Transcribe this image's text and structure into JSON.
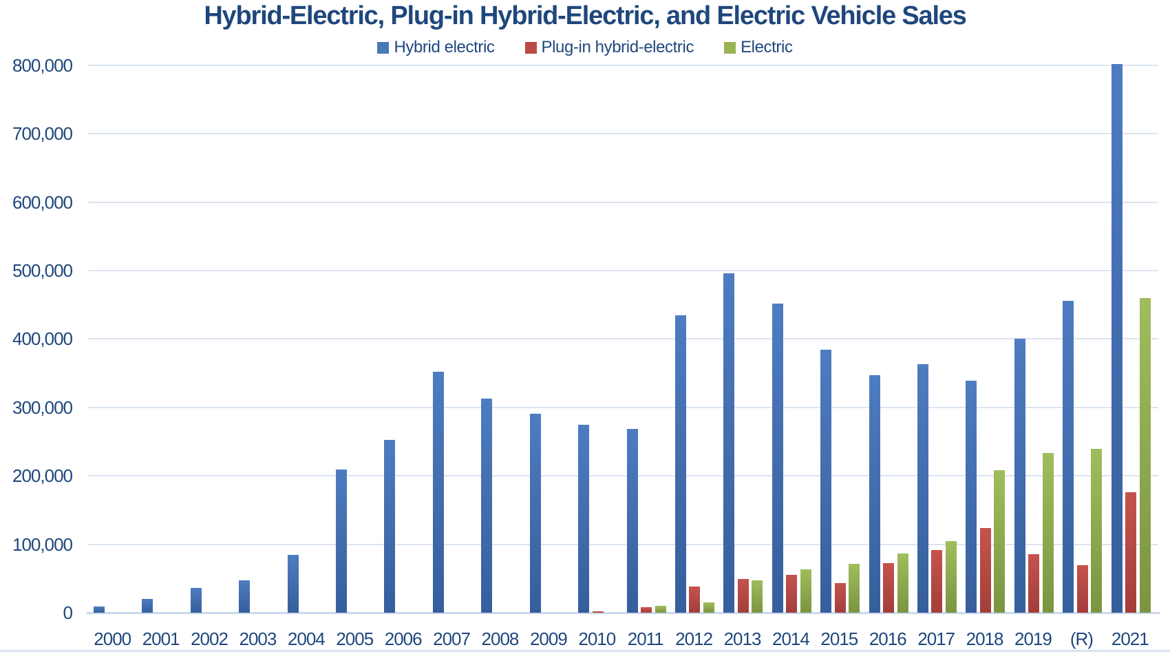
{
  "chart": {
    "title": "Hybrid-Electric, Plug-in Hybrid-Electric, and Electric Vehicle Sales",
    "text_color": "#1F477D",
    "gridline_color": "#DBE5F1",
    "axis_line_color": "#C9D8EB",
    "legend": [
      {
        "label": "Hybrid electric",
        "color": "#4B79B7"
      },
      {
        "label": "Plug-in hybrid-electric",
        "color": "#BA4A45"
      },
      {
        "label": "Electric",
        "color": "#97B353"
      }
    ]
  },
  "chart_data": {
    "type": "bar",
    "title": "Hybrid-Electric, Plug-in Hybrid-Electric, and Electric Vehicle Sales",
    "xlabel": "",
    "ylabel": "",
    "ylim": [
      0,
      800000
    ],
    "y_tick_step": 100000,
    "y_tick_labels": [
      "0",
      "100,000",
      "200,000",
      "300,000",
      "400,000",
      "500,000",
      "600,000",
      "700,000",
      "800,000"
    ],
    "grid": true,
    "legend_position": "top",
    "categories": [
      "2000",
      "2001",
      "2002",
      "2003",
      "2004",
      "2005",
      "2006",
      "2007",
      "2008",
      "2009",
      "2010",
      "2011",
      "2012",
      "2013",
      "2014",
      "2015",
      "2016",
      "2017",
      "2018",
      "2019",
      "(R)",
      "2021"
    ],
    "series": [
      {
        "id": "hybrid-electric",
        "name": "Hybrid electric",
        "color_top": "#4E7CC0",
        "color_bottom": "#365E9C",
        "values": [
          9350,
          20282,
          36035,
          47600,
          84199,
          209711,
          252636,
          352274,
          312386,
          290271,
          274210,
          268752,
          434498,
          495771,
          452172,
          384404,
          346948,
          363288,
          338949,
          400746,
          455677,
          801550
        ]
      },
      {
        "id": "plug-in-hybrid-electric",
        "name": "Plug-in hybrid-electric",
        "color_top": "#C5534E",
        "color_bottom": "#A33E3A",
        "values": [
          0,
          0,
          0,
          0,
          0,
          0,
          0,
          0,
          0,
          0,
          326,
          7671,
          38584,
          49008,
          55357,
          42959,
          72885,
          91545,
          123671,
          85315,
          69262,
          175891
        ]
      },
      {
        "id": "electric",
        "name": "Electric",
        "color_top": "#A0BD5C",
        "color_bottom": "#7B9441",
        "values": [
          0,
          0,
          0,
          0,
          0,
          0,
          0,
          0,
          0,
          0,
          0,
          10064,
          14651,
          47694,
          63416,
          71044,
          86731,
          104487,
          208366,
          233411,
          239295,
          459497
        ]
      }
    ]
  }
}
